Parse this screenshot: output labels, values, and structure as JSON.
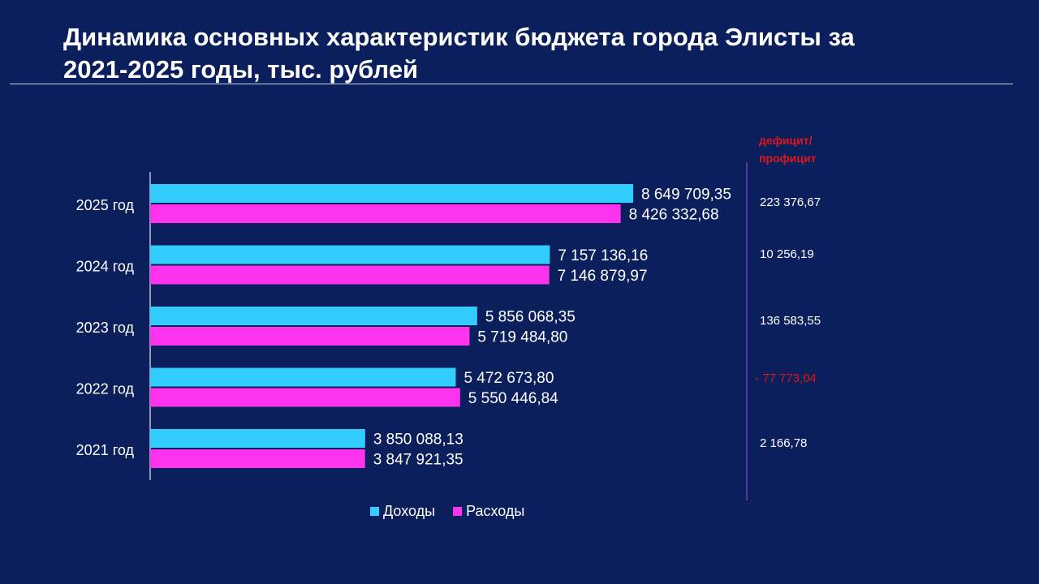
{
  "title": "Динамика основных характеристик бюджета города Элисты за\n2021-2025 годы, тыс. рублей",
  "deficit": {
    "header": "дефицит/\nпрофицит",
    "values": [
      "223 376,67",
      "10 256,19",
      "136 583,55",
      "- 77 773,04",
      "2 166,78"
    ]
  },
  "legend": {
    "income": "Доходы",
    "expense": "Расходы"
  },
  "colors": {
    "background": "#0b1f5c",
    "income": "#33ccff",
    "expense": "#ff33ee",
    "deficit_header": "#e0161b",
    "negative": "#e0161b"
  },
  "chart_data": {
    "type": "bar",
    "orientation": "horizontal",
    "categories": [
      "2025 год",
      "2024 год",
      "2023 год",
      "2022 год",
      "2021 год"
    ],
    "series": [
      {
        "name": "Доходы",
        "values": [
          8649709.35,
          7157136.16,
          5856068.35,
          5472673.8,
          3850088.13
        ],
        "labels": [
          "8 649 709,35",
          "7 157 136,16",
          "5 856 068,35",
          "5 472 673,80",
          "3 850 088,13"
        ]
      },
      {
        "name": "Расходы",
        "values": [
          8426332.68,
          7146879.97,
          5719484.8,
          5550446.84,
          3847921.35
        ],
        "labels": [
          "8 426 332,68",
          "7 146 879,97",
          "5 719 484,80",
          "5 550 446,84",
          "3 847 921,35"
        ]
      }
    ],
    "xlim": [
      0,
      10000000
    ],
    "grid": false,
    "legend_position": "bottom"
  }
}
